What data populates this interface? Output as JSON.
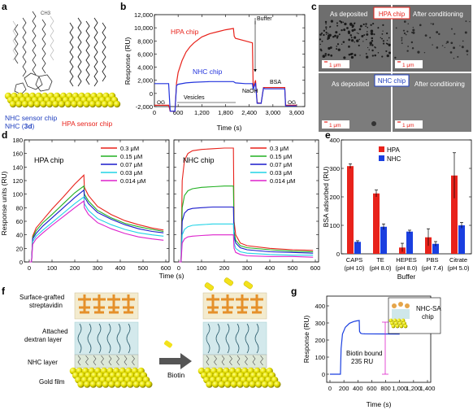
{
  "panels": {
    "a": {
      "letter": "a",
      "nhc_caption_line1": "NHC sensor chip",
      "nhc_caption_line2_prefix": "NHC (",
      "nhc_caption_line2_bold": "3d",
      "nhc_caption_line2_suffix": ")",
      "hpa_caption": "HPA sensor chip",
      "nhc_color": "#1f3fbf",
      "hpa_color": "#e8221b"
    },
    "b": {
      "letter": "b",
      "ylabel": "Response (RU)",
      "xlabel": "Time (s)",
      "yticks": [
        "12,000",
        "10,000",
        "8,000",
        "6,000",
        "4,000",
        "2,000",
        "0",
        "-2,000"
      ],
      "xticks": [
        "0",
        "600",
        "1,200",
        "1,800",
        "2,400",
        "3,000",
        "3,600"
      ],
      "labels": {
        "hpa": "HPA chip",
        "nhc": "NHC chip",
        "buffer": "Buffer",
        "vesicles": "Vesicles",
        "naoh": "NaOH",
        "bsa": "BSA",
        "og1": "OG",
        "og2": "OG"
      }
    },
    "c": {
      "letter": "c",
      "top_left": "As deposited",
      "top_badge": "HPA chip",
      "top_right": "After conditioning",
      "bottom_left": "As deposited",
      "bottom_badge": "NHC chip",
      "bottom_right": "After conditioning",
      "scale": "1 μm"
    },
    "d": {
      "letter": "d",
      "ylabel": "Response units (RU)",
      "xlabel": "Time (s)",
      "yticks": [
        "0",
        "20",
        "40",
        "60",
        "80",
        "100",
        "120",
        "140",
        "160",
        "180"
      ],
      "xticks": [
        "0",
        "100",
        "200",
        "300",
        "400",
        "500",
        "600"
      ],
      "hpa_title": "HPA chip",
      "nhc_title": "NHC chip",
      "legend": [
        "0.3 μM",
        "0.15 μM",
        "0.07 μM",
        "0.03 μM",
        "0.014 μM"
      ],
      "colors": [
        "#e8221b",
        "#22b022",
        "#1a1acc",
        "#22d3e6",
        "#dd22cc"
      ]
    },
    "e": {
      "letter": "e",
      "ylabel": "BSA adsorbed (RU)",
      "xlabel": "Buffer",
      "yticks": [
        "0",
        "100",
        "200",
        "300",
        "400"
      ],
      "legend": [
        "HPA",
        "NHC"
      ],
      "category_names": [
        "CAPS",
        "TE",
        "HEPES",
        "PBS",
        "Citrate"
      ],
      "category_ph": [
        "(pH 10)",
        "(pH 8.0)",
        "(pH 8.0)",
        "(pH 7.4)",
        "(pH 5.0)"
      ]
    },
    "f": {
      "letter": "f",
      "labels": [
        "Surface-grafted streptavidin",
        "Attached dextran layer",
        "NHC layer",
        "Gold film"
      ],
      "streptavidin_line1": "Surface-grafted",
      "streptavidin_line2": "streptavidin",
      "dextran_line1": "Attached",
      "dextran_line2": "dextran layer",
      "nhc_layer": "NHC layer",
      "gold_film": "Gold film",
      "arrow_label": "Biotin"
    },
    "g": {
      "letter": "g",
      "ylabel": "Response (RU)",
      "xlabel": "Time (s)",
      "yticks": [
        "0",
        "100",
        "200",
        "300",
        "400"
      ],
      "xticks": [
        "0",
        "200",
        "400",
        "600",
        "800",
        "1,000",
        "1,200",
        "1,400"
      ],
      "annotation_line1": "Biotin bound",
      "annotation_line2": "235 RU",
      "inset_line1": "NHC-SA",
      "inset_line2": "chip"
    }
  },
  "chart_data": [
    {
      "panel": "b",
      "type": "line",
      "xlabel": "Time (s)",
      "ylabel": "Response (RU)",
      "xlim": [
        0,
        3700
      ],
      "ylim": [
        -3000,
        12000
      ],
      "series": [
        {
          "name": "HPA chip",
          "color": "#e8221b",
          "x": [
            0,
            200,
            360,
            400,
            520,
            560,
            600,
            700,
            800,
            900,
            1000,
            1200,
            1400,
            1600,
            1800,
            2000,
            2020,
            2050,
            2300,
            2480,
            2500,
            2560,
            2600,
            2700,
            2760,
            2800,
            3300,
            3320,
            3600
          ],
          "y": [
            -1800,
            -1800,
            -1800,
            -2700,
            -2700,
            1600,
            3200,
            5000,
            6300,
            7100,
            7700,
            8600,
            9100,
            9400,
            9700,
            9900,
            8700,
            8400,
            8000,
            7700,
            900,
            2000,
            -1400,
            -1500,
            900,
            900,
            900,
            -1800,
            -1800
          ]
        },
        {
          "name": "NHC chip",
          "color": "#2233dd",
          "x": [
            0,
            200,
            360,
            400,
            520,
            560,
            600,
            800,
            1000,
            1400,
            1800,
            2000,
            2050,
            2300,
            2480,
            2500,
            2560,
            2600,
            2700,
            2760,
            2800,
            3300,
            3320,
            3600
          ],
          "y": [
            1500,
            1500,
            1500,
            -2700,
            -2700,
            1200,
            1400,
            1600,
            1700,
            1800,
            1800,
            1800,
            1600,
            1500,
            1500,
            600,
            1600,
            -1500,
            -1500,
            800,
            700,
            700,
            -1900,
            -1900
          ]
        }
      ]
    },
    {
      "panel": "d-HPA",
      "type": "line",
      "title": "HPA chip",
      "xlabel": "Time (s)",
      "ylabel": "Response units (RU)",
      "xlim": [
        0,
        600
      ],
      "ylim": [
        -5,
        185
      ],
      "series": [
        {
          "name": "0.3 μM",
          "color": "#e8221b",
          "x": [
            0,
            10,
            15,
            30,
            60,
            100,
            150,
            200,
            240,
            242,
            260,
            300,
            360,
            420,
            480,
            540,
            590
          ],
          "y": [
            0,
            0,
            38,
            50,
            62,
            78,
            96,
            115,
            128,
            110,
            98,
            82,
            70,
            61,
            55,
            50,
            47
          ]
        },
        {
          "name": "0.15 μM",
          "color": "#22b022",
          "x": [
            0,
            10,
            15,
            30,
            60,
            100,
            150,
            200,
            240,
            242,
            260,
            300,
            360,
            420,
            480,
            540,
            590
          ],
          "y": [
            0,
            0,
            36,
            46,
            58,
            70,
            86,
            102,
            112,
            100,
            90,
            76,
            65,
            57,
            52,
            48,
            45
          ]
        },
        {
          "name": "0.07 μM",
          "color": "#1a1acc",
          "x": [
            0,
            10,
            15,
            30,
            60,
            100,
            150,
            200,
            240,
            242,
            260,
            300,
            360,
            420,
            480,
            540,
            590
          ],
          "y": [
            0,
            0,
            34,
            42,
            53,
            65,
            80,
            95,
            106,
            96,
            86,
            73,
            63,
            55,
            49,
            45,
            43
          ]
        },
        {
          "name": "0.03 μM",
          "color": "#22d3e6",
          "x": [
            0,
            10,
            15,
            30,
            60,
            100,
            150,
            200,
            240,
            242,
            260,
            300,
            360,
            420,
            480,
            540,
            590
          ],
          "y": [
            0,
            0,
            30,
            38,
            47,
            58,
            72,
            86,
            96,
            86,
            76,
            64,
            55,
            48,
            43,
            40,
            38
          ]
        },
        {
          "name": "0.014 μM",
          "color": "#dd22cc",
          "x": [
            0,
            10,
            15,
            30,
            60,
            100,
            150,
            200,
            240,
            242,
            260,
            300,
            360,
            420,
            480,
            540,
            590
          ],
          "y": [
            0,
            0,
            26,
            34,
            43,
            54,
            67,
            80,
            90,
            80,
            70,
            58,
            49,
            42,
            37,
            34,
            32
          ]
        }
      ]
    },
    {
      "panel": "d-NHC",
      "type": "line",
      "title": "NHC chip",
      "xlabel": "Time (s)",
      "xlim": [
        0,
        600
      ],
      "ylim": [
        -5,
        185
      ],
      "series": [
        {
          "name": "0.3 μM",
          "color": "#e8221b",
          "x": [
            0,
            10,
            15,
            25,
            40,
            60,
            100,
            150,
            200,
            240,
            243,
            250,
            270,
            300,
            400,
            500,
            590
          ],
          "y": [
            0,
            0,
            120,
            150,
            160,
            164,
            166,
            167,
            168,
            168,
            60,
            40,
            28,
            24,
            20,
            18,
            17
          ]
        },
        {
          "name": "0.15 μM",
          "color": "#22b022",
          "x": [
            0,
            10,
            15,
            25,
            40,
            60,
            100,
            150,
            200,
            240,
            243,
            250,
            270,
            300,
            400,
            500,
            590
          ],
          "y": [
            0,
            0,
            80,
            98,
            105,
            108,
            110,
            111,
            112,
            112,
            45,
            32,
            24,
            21,
            18,
            16,
            15
          ]
        },
        {
          "name": "0.07 μM",
          "color": "#1a1acc",
          "x": [
            0,
            10,
            15,
            25,
            40,
            60,
            100,
            150,
            200,
            240,
            243,
            250,
            270,
            300,
            400,
            500,
            590
          ],
          "y": [
            0,
            0,
            60,
            72,
            77,
            79,
            80,
            81,
            81,
            81,
            38,
            28,
            21,
            18,
            15,
            14,
            13
          ]
        },
        {
          "name": "0.03 μM",
          "color": "#22d3e6",
          "x": [
            0,
            10,
            15,
            25,
            40,
            60,
            100,
            150,
            200,
            240,
            243,
            250,
            270,
            300,
            400,
            500,
            590
          ],
          "y": [
            0,
            0,
            40,
            48,
            52,
            54,
            55,
            56,
            56,
            56,
            28,
            20,
            15,
            13,
            11,
            10,
            10
          ]
        },
        {
          "name": "0.014 μM",
          "color": "#dd22cc",
          "x": [
            0,
            10,
            15,
            25,
            40,
            60,
            100,
            150,
            200,
            240,
            243,
            250,
            270,
            300,
            400,
            500,
            590
          ],
          "y": [
            0,
            0,
            28,
            34,
            37,
            38,
            39,
            40,
            40,
            40,
            20,
            14,
            11,
            9,
            8,
            8,
            7
          ]
        }
      ]
    },
    {
      "panel": "e",
      "type": "bar",
      "xlabel": "Buffer",
      "ylabel": "BSA adsorbed (RU)",
      "ylim": [
        0,
        400
      ],
      "categories": [
        "CAPS (pH 10)",
        "TE (pH 8.0)",
        "HEPES (pH 8.0)",
        "PBS (pH 7.4)",
        "Citrate (pH 5.0)"
      ],
      "series": [
        {
          "name": "HPA",
          "color": "#e8221b",
          "values": [
            308,
            212,
            22,
            58,
            275
          ],
          "errors": [
            8,
            12,
            15,
            30,
            80
          ]
        },
        {
          "name": "NHC",
          "color": "#1a3fe0",
          "values": [
            42,
            95,
            78,
            35,
            100
          ],
          "errors": [
            4,
            10,
            5,
            8,
            10
          ]
        }
      ]
    },
    {
      "panel": "g",
      "type": "line",
      "xlabel": "Time (s)",
      "ylabel": "Response (RU)",
      "xlim": [
        0,
        1400
      ],
      "ylim": [
        -10,
        420
      ],
      "series": [
        {
          "color": "#1a3fe0",
          "x": [
            0,
            150,
            160,
            180,
            220,
            280,
            340,
            380,
            420,
            425,
            440,
            460,
            500,
            1000
          ],
          "y": [
            0,
            0,
            150,
            235,
            275,
            298,
            308,
            312,
            315,
            250,
            240,
            237,
            236,
            235
          ]
        }
      ]
    }
  ]
}
